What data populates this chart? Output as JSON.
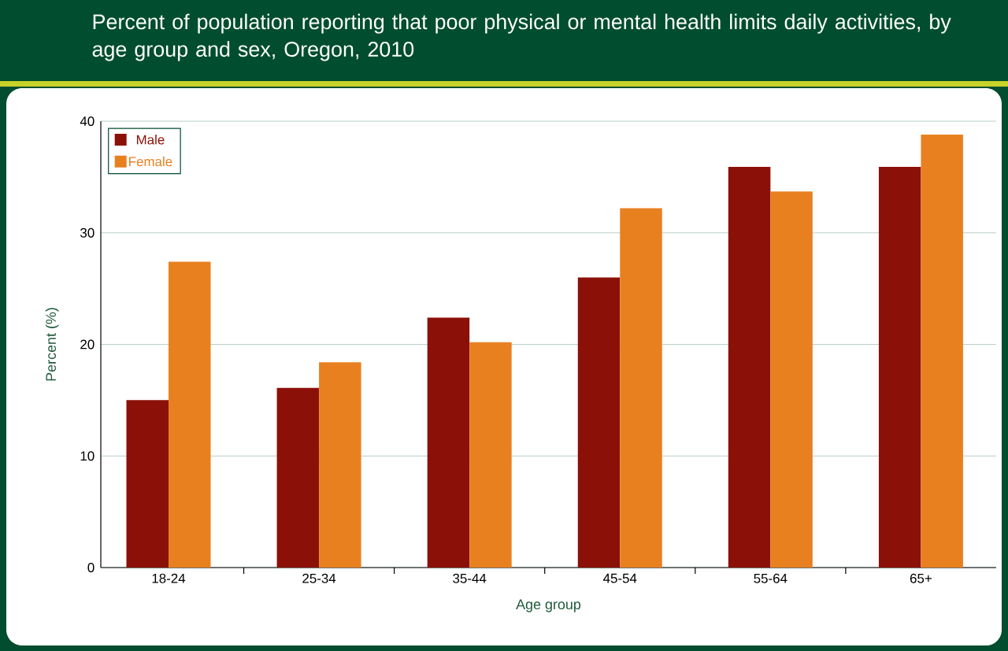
{
  "chart_data": {
    "type": "bar",
    "title": "Percent of population reporting that poor physical or mental health limits daily activities, by age group and sex, Oregon, 2010",
    "xlabel": "Age group",
    "ylabel": "Percent (%)",
    "categories": [
      "18-24",
      "25-34",
      "35-44",
      "45-54",
      "55-64",
      "65+"
    ],
    "series": [
      {
        "name": "Male",
        "color": "#8b1008",
        "values": [
          15.0,
          16.1,
          22.4,
          26.0,
          35.9,
          35.9
        ]
      },
      {
        "name": "Female",
        "color": "#e88020",
        "values": [
          27.4,
          18.4,
          20.2,
          32.2,
          33.7,
          38.8
        ]
      }
    ],
    "ylim": [
      0,
      40
    ],
    "yticks": [
      0,
      10,
      20,
      30,
      40
    ],
    "grid": "y",
    "legend": "top left"
  }
}
